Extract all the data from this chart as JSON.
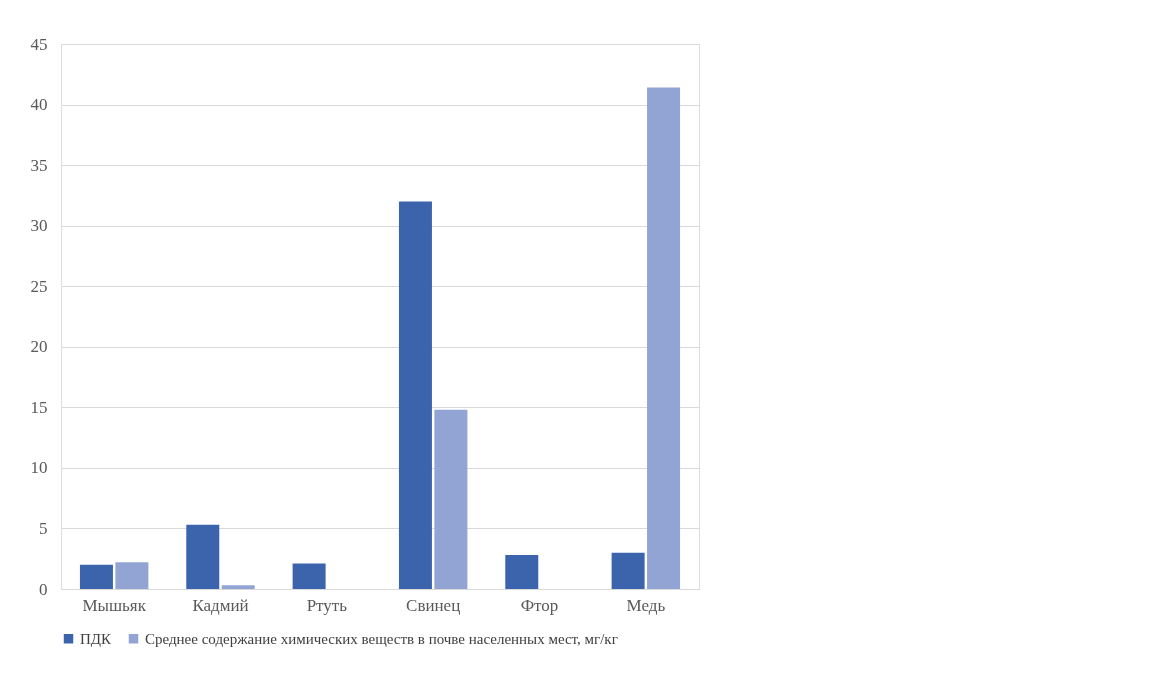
{
  "chart_data": {
    "type": "bar",
    "categories": [
      "Мышьяк",
      "Кадмий",
      "Ртуть",
      "Свинец",
      "Фтор",
      "Медь"
    ],
    "series": [
      {
        "name": "ПДК",
        "color": "#3c64ad",
        "values": [
          2,
          5.3,
          2.1,
          32,
          2.8,
          3
        ]
      },
      {
        "name": "Среднее содержание химических веществ в почве населенных мест, мг/кг",
        "color": "#91a4d4",
        "values": [
          2.2,
          0.3,
          null,
          14.8,
          null,
          41.4
        ]
      }
    ],
    "ylim": [
      0,
      45
    ],
    "yticks": [
      0,
      5,
      10,
      15,
      20,
      25,
      30,
      35,
      40,
      45
    ],
    "grid": "y",
    "legend": "bottom"
  }
}
